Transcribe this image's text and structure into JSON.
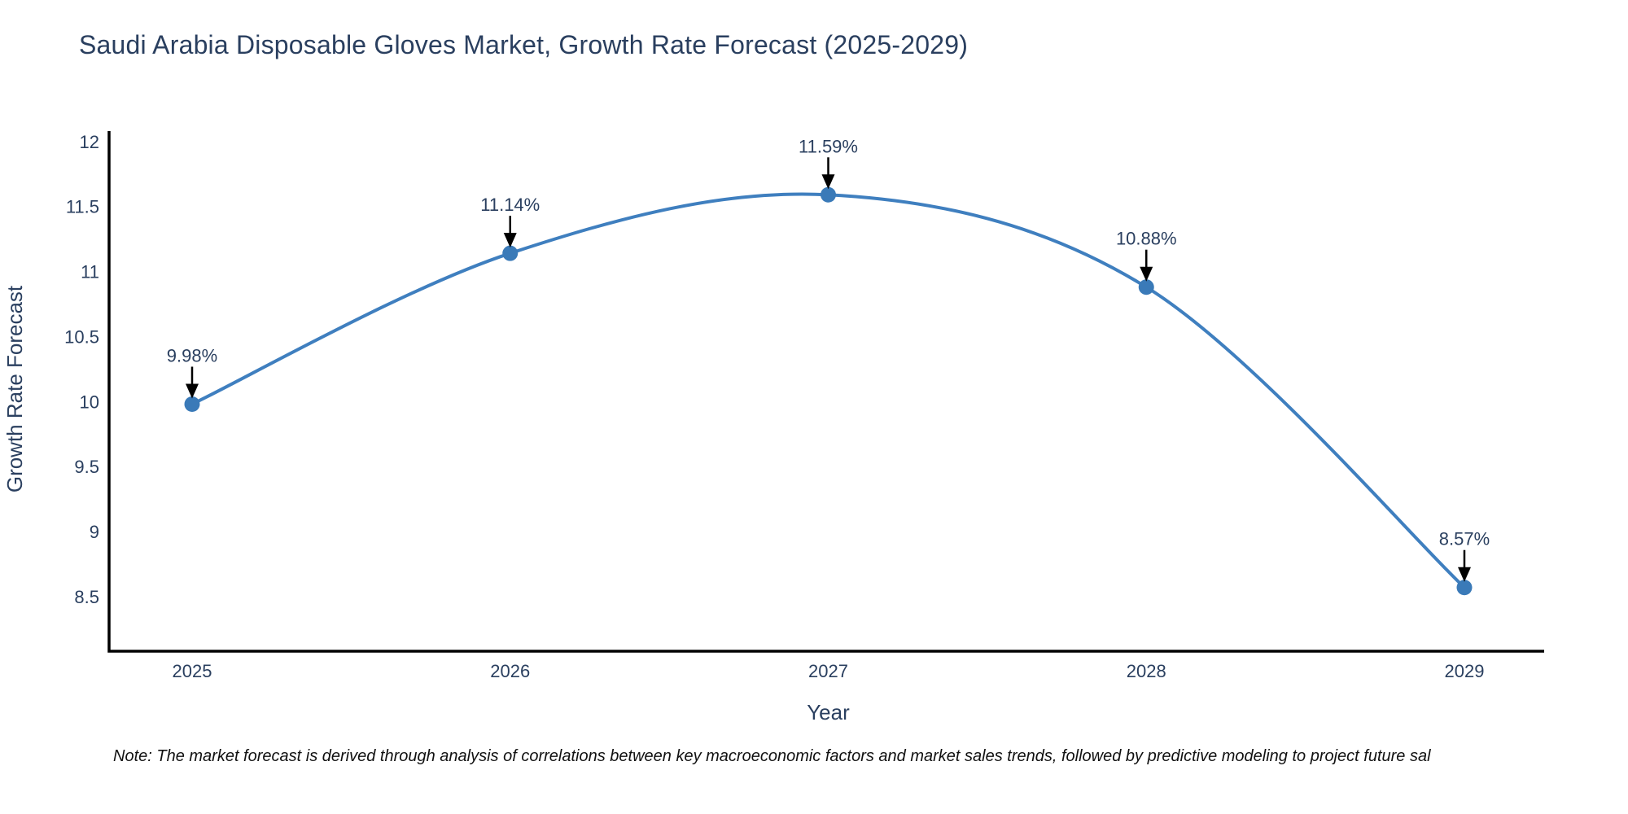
{
  "page": {
    "background_color": "#ffffff"
  },
  "chart_data": {
    "type": "line",
    "title": "Saudi Arabia Disposable Gloves Market, Growth Rate Forecast (2025-2029)",
    "xlabel": "Year",
    "ylabel": "Growth Rate Forecast",
    "x": [
      2025,
      2026,
      2027,
      2028,
      2029
    ],
    "x_tick_labels": [
      "2025",
      "2026",
      "2027",
      "2028",
      "2029"
    ],
    "values": [
      9.98,
      11.14,
      11.59,
      10.88,
      8.57
    ],
    "point_labels": [
      "9.98%",
      "11.14%",
      "11.59%",
      "10.88%",
      "8.57%"
    ],
    "y_ticks": [
      8.5,
      9,
      9.5,
      10,
      10.5,
      11,
      11.5,
      12
    ],
    "y_tick_labels": [
      "8.5",
      "9",
      "9.5",
      "10",
      "10.5",
      "11",
      "11.5",
      "12"
    ],
    "ylim": [
      8.08,
      12.08
    ],
    "grid": false,
    "legend_position": "none",
    "curve": "smooth-spline",
    "line_color": "#3f7fbf",
    "marker_color": "#3a7ab8",
    "axis_color": "#000000",
    "text_color": "#2a3f5f",
    "annotation_arrow_color": "#000000"
  },
  "footnote": "Note: The market forecast is derived through analysis of correlations between key macroeconomic factors and market sales trends, followed by predictive modeling to project future sal"
}
